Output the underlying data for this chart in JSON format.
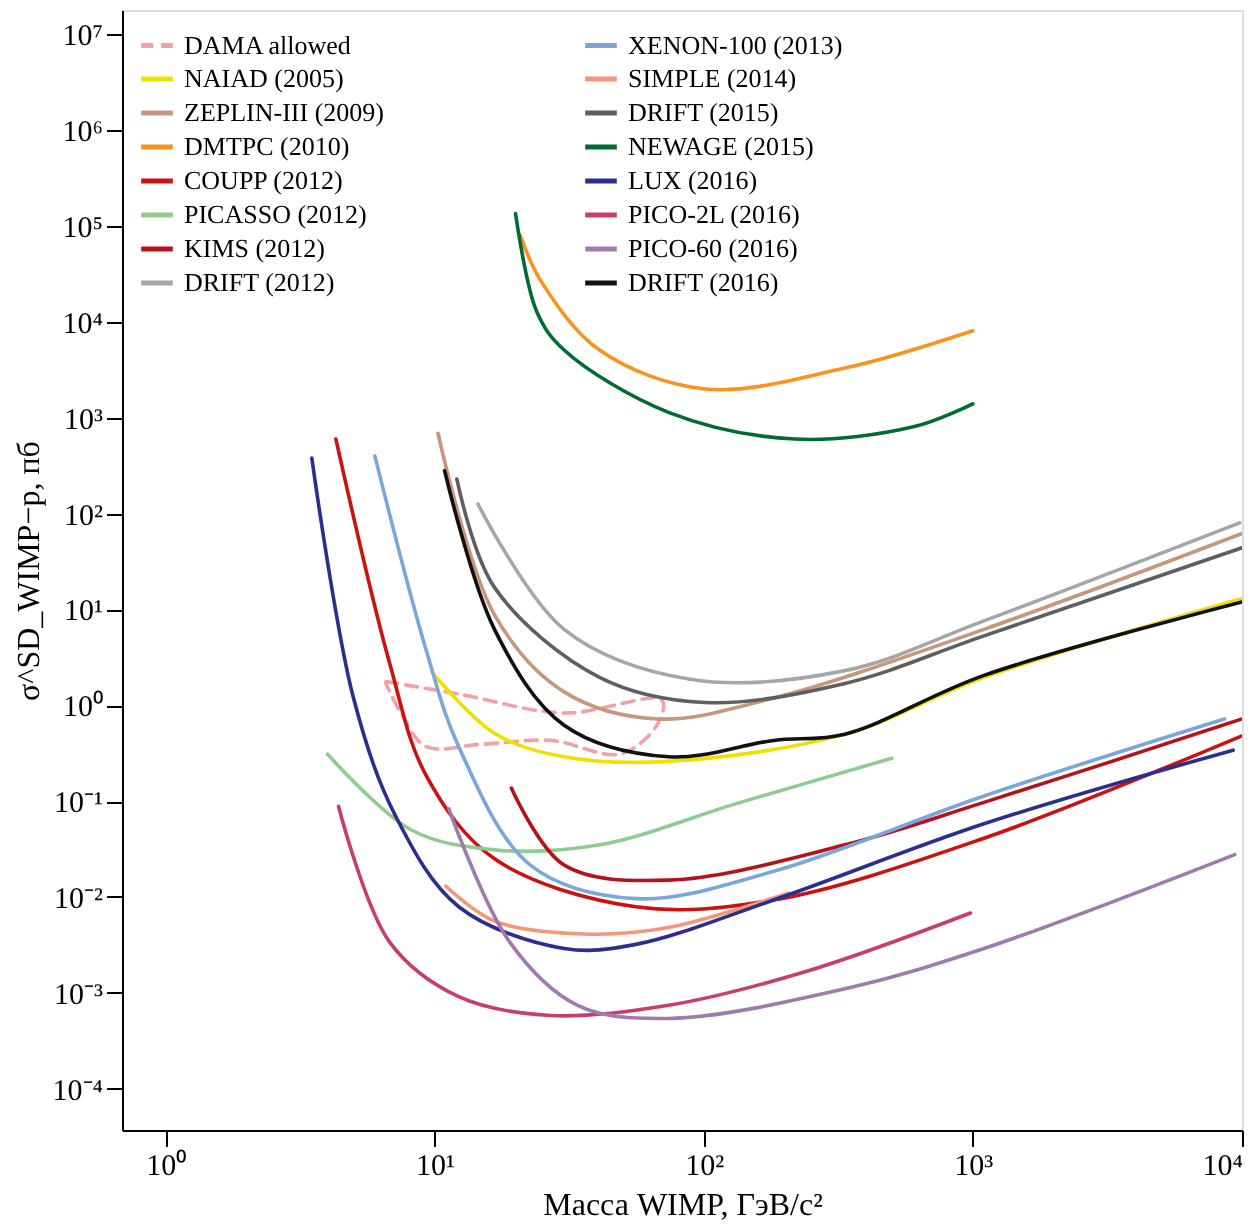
{
  "chart_data": {
    "type": "line",
    "xlabel": "Масса WIMP, ГэВ/c²",
    "ylabel": "σ^SD_WIMP−p, пб",
    "log": "xy",
    "grid": false,
    "legend": "top left",
    "xlim": [
      0.69,
      10000
    ],
    "ylim": [
      3.7e-05,
      18000000.0
    ],
    "xticks": [
      {
        "value": 1,
        "label": "10⁰"
      },
      {
        "value": 10,
        "label": "10¹"
      },
      {
        "value": 100,
        "label": "10²"
      },
      {
        "value": 1000,
        "label": "10³"
      },
      {
        "value": 10000,
        "label": "10⁴"
      }
    ],
    "yticks": [
      {
        "value": 0.0001,
        "label": "10⁻⁴"
      },
      {
        "value": 0.001,
        "label": "10⁻³"
      },
      {
        "value": 0.01,
        "label": "10⁻²"
      },
      {
        "value": 0.1,
        "label": "10⁻¹"
      },
      {
        "value": 1,
        "label": "10⁰"
      },
      {
        "value": 10,
        "label": "10¹"
      },
      {
        "value": 100,
        "label": "10²"
      },
      {
        "value": 1000,
        "label": "10³"
      },
      {
        "value": 10000,
        "label": "10⁴"
      },
      {
        "value": 100000,
        "label": "10⁵"
      },
      {
        "value": 1000000,
        "label": "10⁶"
      },
      {
        "value": 10000000,
        "label": "10⁷"
      }
    ],
    "series": [
      {
        "name": "DAMA allowed",
        "color": "#f4a0a8",
        "line_style": "dashed",
        "x": [
          6.6,
          12.3,
          30.3,
          70,
          67,
          49,
          27,
          14.7,
          9.3,
          7.5,
          6.6
        ],
        "values": [
          1.77,
          1.31,
          0.83,
          1.13,
          0.62,
          0.31,
          0.43,
          0.39,
          0.37,
          0.83,
          1.69
        ]
      },
      {
        "name": "NAIAD (2005)",
        "color": "#f0e000",
        "x": [
          9.8,
          16.7,
          30.3,
          74,
          335,
          1100,
          10000
        ],
        "values": [
          2.2,
          0.51,
          0.29,
          0.26,
          0.5,
          1.96,
          13
        ]
      },
      {
        "name": "ZEPLIN-III (2009)",
        "color": "#c8967a",
        "x": [
          10.3,
          16.7,
          30.3,
          67,
          182,
          1100,
          10000
        ],
        "values": [
          690,
          8.8,
          1.38,
          0.72,
          1.19,
          6.2,
          62
        ]
      },
      {
        "name": "DMTPC (2010)",
        "color": "#f7941d",
        "x": [
          20.8,
          24.8,
          41,
          101,
          335,
          1000
        ],
        "values": [
          81000,
          27000,
          5100,
          2000,
          3300,
          8100
        ]
      },
      {
        "name": "COUPP (2012)",
        "color": "#cc1111",
        "x": [
          4.3,
          6.8,
          9.3,
          16.7,
          56,
          182,
          1100,
          10000
        ],
        "values": [
          600,
          2.8,
          0.186,
          0.025,
          0.0079,
          0.0093,
          0.041,
          0.48
        ]
      },
      {
        "name": "PICASSO (2012)",
        "color": "#8fcc8f",
        "x": [
          4.0,
          8.2,
          16.7,
          41,
          137,
          500
        ],
        "values": [
          0.31,
          0.05,
          0.031,
          0.035,
          0.097,
          0.28
        ]
      },
      {
        "name": "KIMS (2012)",
        "color": "#b5121b",
        "x": [
          19.3,
          30.3,
          74,
          335,
          1100,
          10000
        ],
        "values": [
          0.137,
          0.0215,
          0.015,
          0.035,
          0.097,
          0.72
        ]
      },
      {
        "name": "DRIFT (2012)",
        "color": "#a6a6a6",
        "x": [
          14.5,
          30.3,
          89,
          335,
          1100,
          9800
        ],
        "values": [
          126,
          6.2,
          1.87,
          2.3,
          7.6,
          80
        ]
      },
      {
        "name": "XENON-100 (2013)",
        "color": "#7aa6dc",
        "x": [
          6.0,
          9.3,
          12.3,
          22.7,
          56,
          182,
          1100,
          8600
        ],
        "values": [
          400,
          3.8,
          0.37,
          0.0215,
          0.0096,
          0.0185,
          0.113,
          0.72
        ]
      },
      {
        "name": "SIMPLE (2014)",
        "color": "#f5967a",
        "x": [
          11,
          16.7,
          36,
          74,
          207
        ],
        "values": [
          0.013,
          0.0056,
          0.0041,
          0.0048,
          0.011
        ]
      },
      {
        "name": "DRIFT (2015)",
        "color": "#5f5f5f",
        "x": [
          12.1,
          16.7,
          41,
          101,
          335,
          1100,
          10000
        ],
        "values": [
          230,
          17,
          1.96,
          1.07,
          1.69,
          5.3,
          44
        ]
      },
      {
        "name": "NEWAGE (2015)",
        "color": "#006b33",
        "x": [
          20.0,
          24,
          30.3,
          74,
          218,
          606,
          1000
        ],
        "values": [
          135000,
          12700,
          5100,
          1140,
          600,
          810,
          1400
        ]
      },
      {
        "name": "LUX (2016)",
        "color": "#2b2e8f",
        "x": [
          3.5,
          5.0,
          7.2,
          12.3,
          30.3,
          56,
          182,
          1100,
          9270
        ],
        "values": [
          380,
          1.19,
          0.068,
          0.0079,
          0.0029,
          0.0032,
          0.0093,
          0.058,
          0.34
        ]
      },
      {
        "name": "PICO-2L (2016)",
        "color": "#c83c6e",
        "x": [
          4.4,
          6.8,
          12.3,
          27,
          74,
          245,
          980
        ],
        "values": [
          0.088,
          0.0034,
          0.00091,
          0.00058,
          0.00074,
          0.0017,
          0.0068
        ]
      },
      {
        "name": "PICO-60 (2016)",
        "color": "#a07aad",
        "x": [
          11.3,
          19,
          34,
          74,
          335,
          1100,
          9400
        ],
        "values": [
          0.083,
          0.0034,
          0.00074,
          0.00054,
          0.0011,
          0.0029,
          0.0277
        ]
      },
      {
        "name": "DRIFT (2016)",
        "color": "#111111",
        "x": [
          10.9,
          16.7,
          30.3,
          74,
          182,
          335,
          1100,
          10000
        ],
        "values": [
          280,
          6.2,
          0.62,
          0.29,
          0.43,
          0.5,
          2.05,
          12
        ]
      }
    ]
  }
}
